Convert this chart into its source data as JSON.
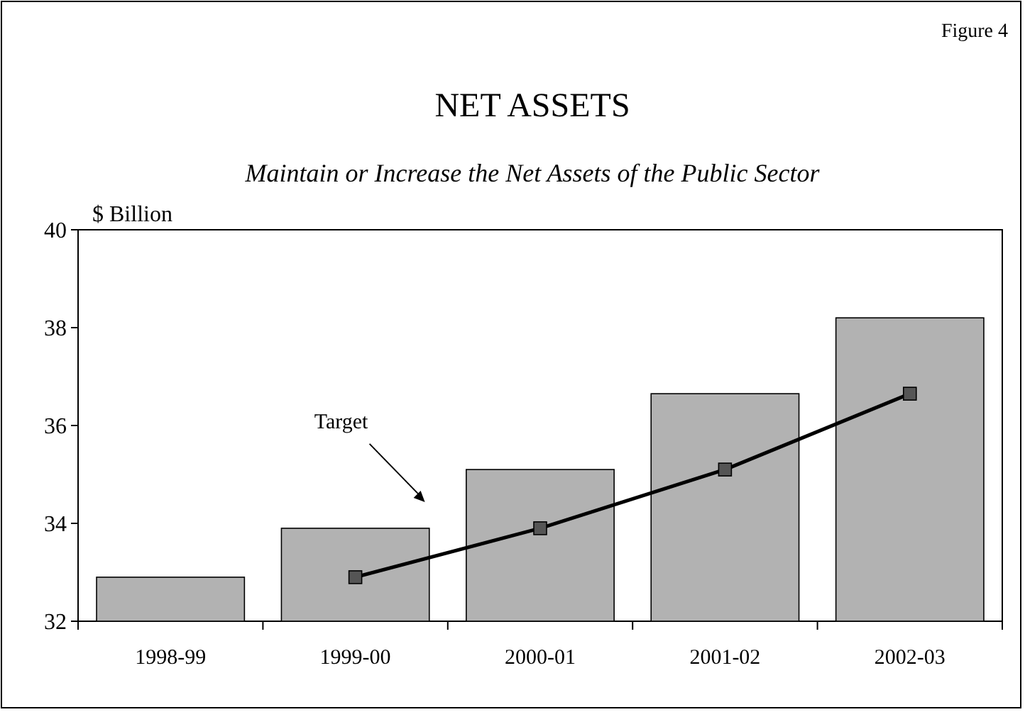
{
  "chart_data": {
    "type": "bar",
    "title": "NET ASSETS",
    "subtitle": "Maintain or Increase the Net Assets of the Public Sector",
    "ylabel": "$ Billion",
    "annotations": [
      "Figure 4"
    ],
    "categories": [
      "1998-99",
      "1999-00",
      "2000-01",
      "2001-02",
      "2002-03"
    ],
    "series": [
      {
        "color": "#b2b2b2",
        "values": [
          32.9,
          33.9,
          35.1,
          36.65,
          38.2
        ]
      },
      {
        "type": "line",
        "name": "Target",
        "color": "#000000",
        "marker": "square",
        "values": [
          null,
          32.9,
          33.9,
          35.1,
          36.65
        ]
      }
    ],
    "ylim": [
      32,
      40
    ],
    "yticks": [
      32,
      34,
      36,
      38,
      40
    ],
    "grid": false
  }
}
